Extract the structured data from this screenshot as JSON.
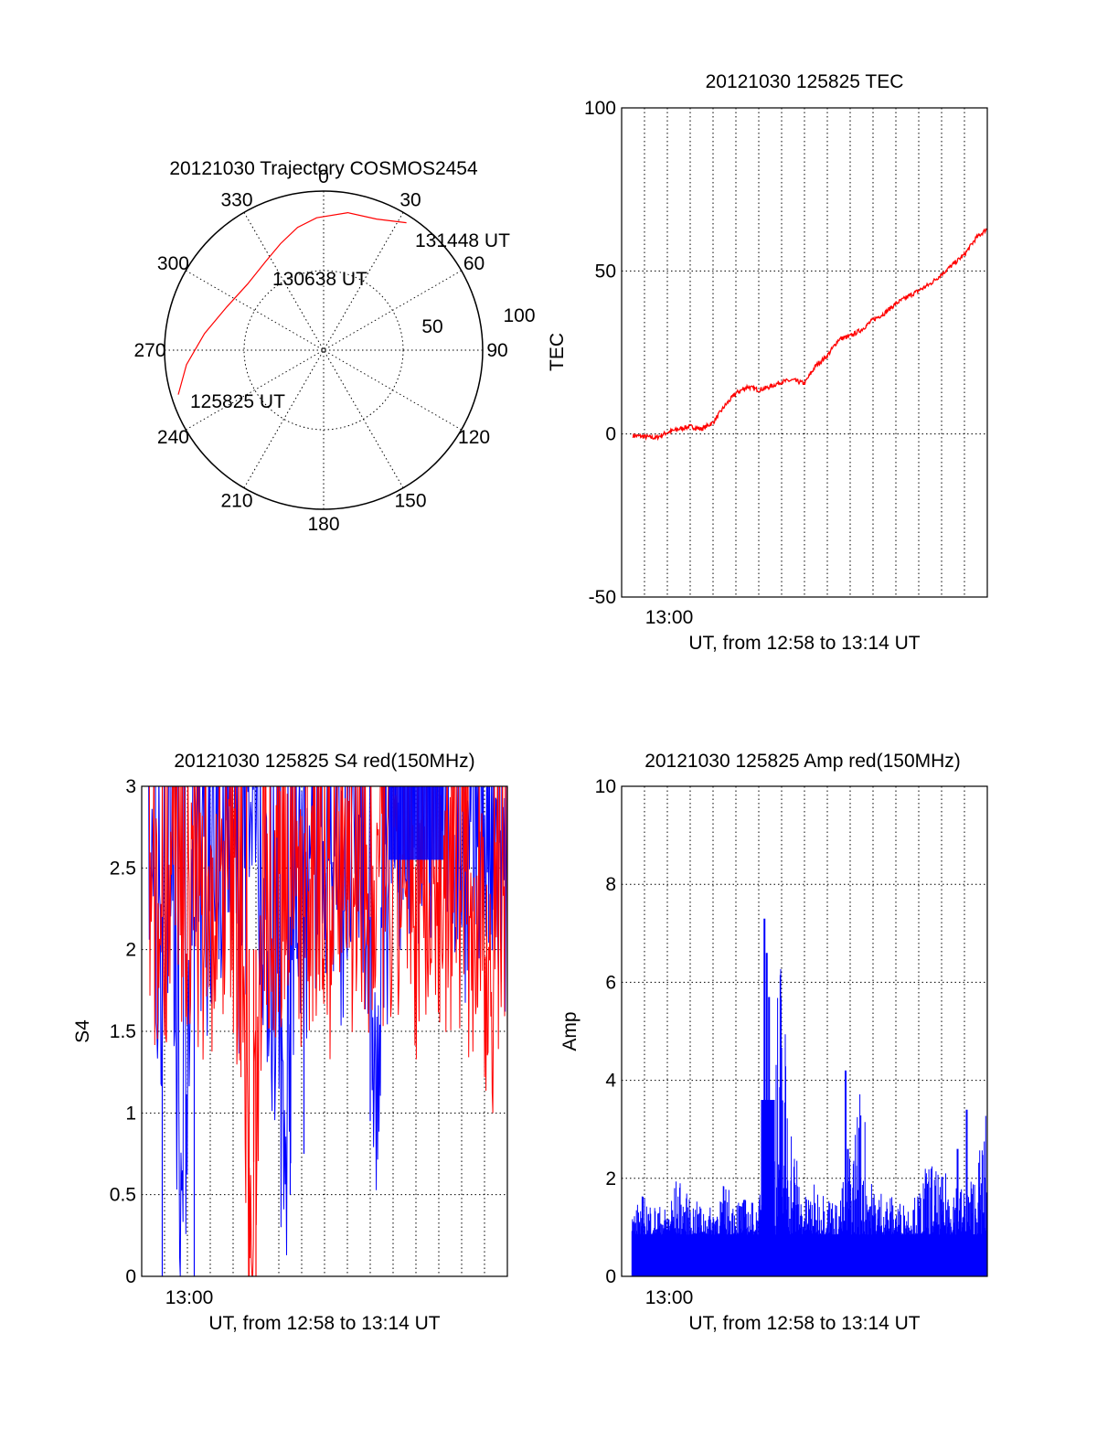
{
  "chart_data": [
    {
      "type": "scatter",
      "subtype": "polar-trajectory",
      "title": "20121030 Trajectory COSMOS2454",
      "azimuth_labels": [
        "0",
        "30",
        "60",
        "90",
        "120",
        "150",
        "180",
        "210",
        "240",
        "270",
        "300",
        "330"
      ],
      "ring_labels": [
        "50",
        "100"
      ],
      "grid": true,
      "series": [
        {
          "color": "#ff0000",
          "points": [
            {
              "azimuth": 253,
              "zenith": 86
            },
            {
              "azimuth": 264,
              "zenith": 78
            },
            {
              "azimuth": 278,
              "zenith": 68
            },
            {
              "azimuth": 294,
              "zenith": 60
            },
            {
              "azimuth": 311,
              "zenith": 57
            },
            {
              "azimuth": 327,
              "zenith": 60
            },
            {
              "azimuth": 338,
              "zenith": 65
            },
            {
              "azimuth": 348,
              "zenith": 71
            },
            {
              "azimuth": 357,
              "zenith": 75
            },
            {
              "azimuth": 10,
              "zenith": 79
            },
            {
              "azimuth": 22,
              "zenith": 80
            },
            {
              "azimuth": 33,
              "zenith": 86
            }
          ]
        }
      ],
      "annotations": [
        "131448 UT",
        "130638 UT",
        "125825 UT"
      ]
    },
    {
      "type": "line",
      "title": "20121030 125825 TEC",
      "xlabel": "UT, from 12:58 to 13:14 UT",
      "ylabel": "TEC",
      "xlim": [
        "12:58",
        "13:14"
      ],
      "x_tick_labels": [
        "13:00"
      ],
      "ylim": [
        -50,
        100
      ],
      "y_tick_labels": [
        "-50",
        "0",
        "50",
        "100"
      ],
      "grid": true,
      "series": [
        {
          "color": "#ff0000",
          "x_minutes_after_1258": [
            0,
            0.5,
            1,
            1.5,
            2,
            2.5,
            3,
            3.5,
            4,
            4.5,
            5,
            5.5,
            6,
            6.5,
            7,
            7.5,
            8,
            8.5,
            9,
            9.5,
            10,
            10.5,
            11,
            11.5,
            12,
            12.5,
            13,
            13.5,
            14,
            14.5,
            15,
            15.5,
            16
          ],
          "values": [
            -0.5,
            -0.8,
            -1.2,
            0.5,
            1.5,
            2.3,
            1.5,
            3.5,
            8.5,
            12.5,
            14.5,
            13.5,
            14.5,
            16,
            16.5,
            15.5,
            21,
            24,
            29,
            30,
            32,
            35,
            37,
            40,
            42,
            44,
            46,
            49,
            52,
            55,
            60,
            63,
            66.5
          ]
        }
      ]
    },
    {
      "type": "line",
      "title": "20121030 125825 S4 red(150MHz)",
      "xlabel": "UT, from 12:58 to 13:14 UT",
      "ylabel": "S4",
      "xlim": [
        "12:58",
        "13:14"
      ],
      "x_tick_labels": [
        "13:00"
      ],
      "ylim": [
        0,
        3
      ],
      "y_tick_labels": [
        "0",
        "0.5",
        "1",
        "1.5",
        "2",
        "2.5",
        "3"
      ],
      "grid": true,
      "series": [
        {
          "color": "#0000ff",
          "x_minutes_after_1258": [
            0,
            0.5,
            1,
            1.5,
            2,
            2.5,
            3,
            3.5,
            4,
            4.5,
            5,
            5.5,
            6,
            6.5,
            7,
            7.5,
            8,
            8.5,
            9,
            9.5,
            10,
            10.5,
            11,
            11.5,
            12,
            12.5,
            13,
            13.5,
            14,
            14.5,
            15,
            15.5,
            16
          ],
          "values": [
            2.3,
            1.8,
            2.5,
            0.0,
            2.7,
            2.2,
            2.6,
            2.4,
            2.1,
            2.8,
            2.3,
            1.6,
            0.5,
            2.4,
            2.2,
            2.7,
            2.5,
            2.3,
            2.6,
            2.4,
            1.0,
            2.5,
            2.8,
            2.7,
            2.9,
            2.8,
            2.9,
            2.6,
            2.4,
            2.7,
            2.5,
            2.2,
            2.4
          ],
          "minima_to_zero_near": [
            "12:58.3",
            "12:59.7",
            "13:01.0",
            "13:01.4"
          ]
        },
        {
          "color": "#ff0000",
          "x_minutes_after_1258": [
            0,
            0.5,
            1,
            1.5,
            2,
            2.5,
            3,
            3.5,
            4,
            4.5,
            5,
            5.5,
            6,
            6.5,
            7,
            7.5,
            8,
            8.5,
            9,
            9.5,
            10,
            10.5,
            11,
            11.5,
            12,
            12.5,
            13,
            13.5,
            14,
            14.5,
            15,
            15.5,
            16
          ],
          "values": [
            2.2,
            2.0,
            2.4,
            2.1,
            2.3,
            2.0,
            2.2,
            2.5,
            1.9,
            0.0,
            2.3,
            2.1,
            2.4,
            2.2,
            2.0,
            2.3,
            2.1,
            2.5,
            2.2,
            1.8,
            2.4,
            2.1,
            2.3,
            2.0,
            2.2,
            2.4,
            2.1,
            2.3,
            2.0,
            2.2,
            1.7,
            2.4,
            2.1
          ]
        }
      ]
    },
    {
      "type": "bar",
      "title": "20121030 125825 Amp red(150MHz)",
      "xlabel": "UT, from 12:58 to 13:14 UT",
      "ylabel": "Amp",
      "xlim": [
        "12:58",
        "13:14"
      ],
      "x_tick_labels": [
        "13:00"
      ],
      "ylim": [
        0,
        10
      ],
      "y_tick_labels": [
        "0",
        "2",
        "4",
        "6",
        "8",
        "10"
      ],
      "grid": true,
      "series": [
        {
          "color": "#0000ff",
          "x_minutes_after_1258": [
            0,
            0.5,
            1,
            1.5,
            2,
            2.5,
            3,
            3.5,
            4,
            4.5,
            5,
            5.5,
            6,
            6.5,
            7,
            7.5,
            8,
            8.5,
            9,
            9.5,
            10,
            10.5,
            11,
            11.5,
            12,
            12.5,
            13,
            13.5,
            14,
            14.5,
            15,
            15.5,
            16
          ],
          "values": [
            1.3,
            1.7,
            1.5,
            1.4,
            2.1,
            1.6,
            1.5,
            1.4,
            1.9,
            1.7,
            1.6,
            1.5,
            2.5,
            7.3,
            3.3,
            1.6,
            1.9,
            1.8,
            1.5,
            2.5,
            4.2,
            1.9,
            1.8,
            1.6,
            1.5,
            1.7,
            2.5,
            2.0,
            2.3,
            1.8,
            2.2,
            3.4,
            2.2
          ]
        }
      ]
    }
  ]
}
